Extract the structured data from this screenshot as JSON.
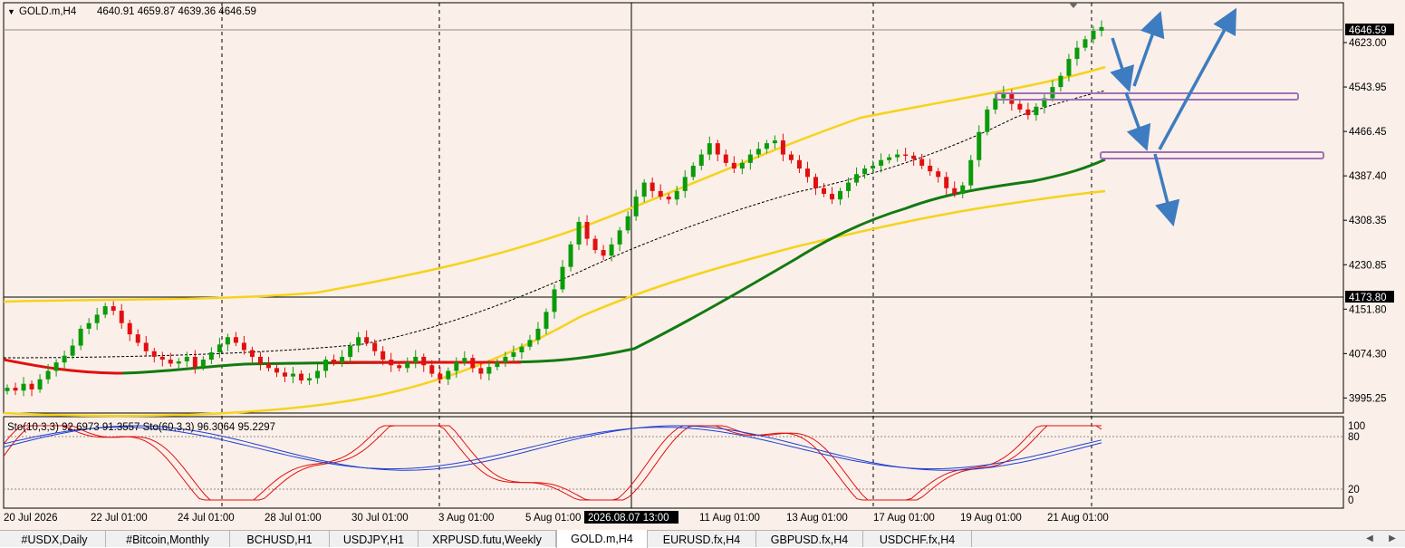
{
  "chart_header": {
    "symbol": "GOLD.m,H4",
    "ohlc": "4640.91 4659.87 4639.36 4646.59",
    "collapse_glyph": "▼"
  },
  "price_axis": {
    "labels": [
      "4623.00",
      "4543.95",
      "4466.45",
      "4387.40",
      "4308.35",
      "4230.85",
      "4151.80",
      "4074.30",
      "3995.25"
    ],
    "current_price_tag": "4646.59",
    "crosshair_price_tag": "4173.80",
    "bid_color": "#000000"
  },
  "stoch_axis": {
    "labels": [
      "100",
      "80",
      "20",
      "0"
    ]
  },
  "time_axis": {
    "labels": [
      "20 Jul 2026",
      "22 Jul 01:00",
      "24 Jul 01:00",
      "28 Jul 01:00",
      "30 Jul 01:00",
      "3 Aug 01:00",
      "5 Aug 01:00",
      "11 Aug 01:00",
      "13 Aug 01:00",
      "17 Aug 01:00",
      "19 Aug 01:00",
      "21 Aug 01:00"
    ],
    "crosshair_time_tag": "2026.08.07 13:00"
  },
  "stoch_header": {
    "label": "Sto(10,3,3) 92.6973 91.3557  Sto(60,3,3) 96.3064 95.2297"
  },
  "tabs": [
    {
      "label": "#USDX,Daily",
      "active": false
    },
    {
      "label": "#Bitcoin,Monthly",
      "active": false
    },
    {
      "label": "BCHUSD,H1",
      "active": false
    },
    {
      "label": "USDJPY,H1",
      "active": false
    },
    {
      "label": "XRPUSD.futu,Weekly",
      "active": false
    },
    {
      "label": "GOLD.m,H4",
      "active": true
    },
    {
      "label": "EURUSD.fx,H4",
      "active": false
    },
    {
      "label": "GBPUSD.fx,H4",
      "active": false
    },
    {
      "label": "USDCHF.fx,H4",
      "active": false
    }
  ],
  "scroll": {
    "left": "◀",
    "right": "▶"
  },
  "colors": {
    "background": "#fbefe9",
    "bull_candle": "#0a9b0a",
    "bear_candle": "#e01010",
    "envelope": "#f5d31b",
    "ma_up": "#127a12",
    "ma_down": "#e01010",
    "annotation_arrow": "#3d7cc0",
    "zone_box": "#a070b8",
    "stoch_main": "#1f3fd0",
    "stoch_signal": "#e01010"
  },
  "chart_data": {
    "type": "candlestick",
    "symbol": "GOLD.m",
    "timeframe": "H4",
    "ylim": [
      3960,
      4690
    ],
    "close": [
      4005,
      4000,
      4012,
      4002,
      4020,
      4035,
      4050,
      4062,
      4080,
      4110,
      4120,
      4135,
      4150,
      4142,
      4120,
      4100,
      4085,
      4070,
      4060,
      4055,
      4048,
      4052,
      4060,
      4042,
      4055,
      4068,
      4082,
      4095,
      4085,
      4072,
      4060,
      4048,
      4040,
      4032,
      4025,
      4030,
      4018,
      4022,
      4035,
      4055,
      4050,
      4060,
      4080,
      4095,
      4085,
      4070,
      4055,
      4045,
      4040,
      4050,
      4060,
      4045,
      4030,
      4020,
      4035,
      4050,
      4058,
      4040,
      4030,
      4042,
      4050,
      4060,
      4068,
      4078,
      4090,
      4110,
      4140,
      4180,
      4220,
      4260,
      4300,
      4270,
      4250,
      4240,
      4260,
      4285,
      4310,
      4345,
      4370,
      4355,
      4345,
      4340,
      4355,
      4380,
      4400,
      4420,
      4440,
      4420,
      4405,
      4395,
      4405,
      4420,
      4430,
      4440,
      4445,
      4420,
      4410,
      4395,
      4380,
      4360,
      4350,
      4340,
      4355,
      4370,
      4385,
      4395,
      4400,
      4410,
      4415,
      4420,
      4418,
      4412,
      4400,
      4390,
      4380,
      4360,
      4350,
      4365,
      4410,
      4460,
      4500,
      4520,
      4530,
      4510,
      4500,
      4490,
      4505,
      4520,
      4540,
      4560,
      4590,
      4610,
      4625,
      4640,
      4646.59
    ]
  },
  "indicators": {
    "stochastic_fast": {
      "name": "Sto(10,3,3)",
      "main": 92.6973,
      "signal": 91.3557
    },
    "stochastic_slow": {
      "name": "Sto(60,3,3)",
      "main": 96.3064,
      "signal": 95.2297
    }
  }
}
